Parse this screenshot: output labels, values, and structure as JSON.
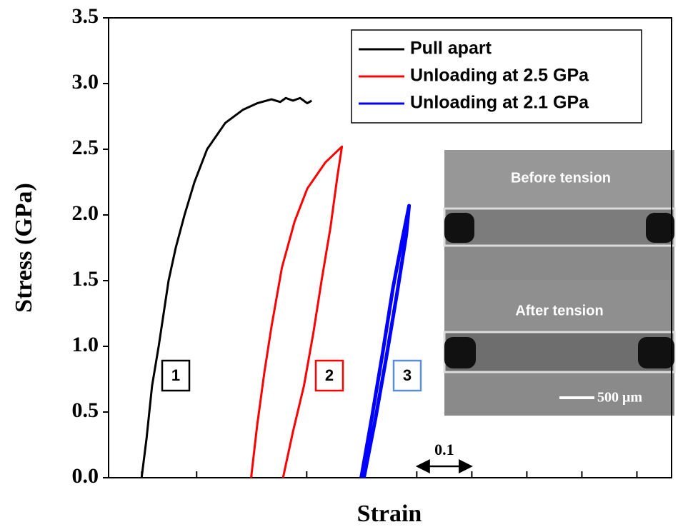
{
  "chart_data": {
    "type": "line",
    "x_label": "Strain",
    "y_label": "Stress (GPa)",
    "xlim": [
      -0.06,
      0.963
    ],
    "xticks": [
      0,
      0.1,
      0.2,
      0.3,
      0.4,
      0.5,
      0.6,
      0.7,
      0.8,
      0.9
    ],
    "ylim": [
      0,
      3.5
    ],
    "yticks": [
      {
        "value": 0,
        "label": "0.0"
      },
      {
        "value": 0.5,
        "label": "0.5"
      },
      {
        "value": 1,
        "label": "1.0"
      },
      {
        "value": 1.5,
        "label": "1.5"
      },
      {
        "value": 2,
        "label": "2.0"
      },
      {
        "value": 2.5,
        "label": "2.5"
      },
      {
        "value": 3,
        "label": "3.0"
      },
      {
        "value": 3.5,
        "label": "3.5"
      }
    ],
    "legend": "top-right",
    "series": [
      {
        "name": "Pull apart",
        "color": "#000000",
        "x": [
          0,
          0.009,
          0.019,
          0.031,
          0.04,
          0.049,
          0.062,
          0.078,
          0.096,
          0.119,
          0.152,
          0.184,
          0.21,
          0.236,
          0.252,
          0.262,
          0.275,
          0.288,
          0.301,
          0.309
        ],
        "values": [
          0,
          0.3,
          0.7,
          1.0,
          1.25,
          1.5,
          1.75,
          2.0,
          2.25,
          2.5,
          2.7,
          2.8,
          2.85,
          2.88,
          2.86,
          2.89,
          2.87,
          2.89,
          2.85,
          2.87
        ]
      },
      {
        "name": "Unloading at 2.5 GPa",
        "color": "#ff0000",
        "x": [
          0.199,
          0.21,
          0.223,
          0.236,
          0.255,
          0.278,
          0.301,
          0.334,
          0.364,
          0.356,
          0.343,
          0.327,
          0.312,
          0.295,
          0.275,
          0.257
        ],
        "values": [
          0,
          0.4,
          0.8,
          1.15,
          1.6,
          1.95,
          2.2,
          2.4,
          2.52,
          2.3,
          1.9,
          1.5,
          1.1,
          0.7,
          0.35,
          0
        ]
      },
      {
        "name": "Unloading at 2.1 GPa",
        "color": "#0000ff",
        "x": [
          0.399,
          0.418,
          0.438,
          0.457,
          0.473,
          0.486,
          0.481,
          0.464,
          0.444,
          0.425,
          0.404
        ],
        "values": [
          0,
          0.45,
          0.95,
          1.45,
          1.8,
          2.07,
          1.85,
          1.4,
          0.9,
          0.45,
          0
        ]
      }
    ],
    "curve_labels": [
      {
        "text": "1",
        "color": "#000000"
      },
      {
        "text": "2",
        "color": "#ff0000"
      },
      {
        "text": "3",
        "color": "#5b8fd0"
      }
    ],
    "scale_bar": {
      "text": "0.1",
      "from": 0.5,
      "to": 0.6
    },
    "inset": {
      "top_label": "Before tension",
      "bottom_label": "After tension",
      "scale_label": "500 μm"
    }
  }
}
